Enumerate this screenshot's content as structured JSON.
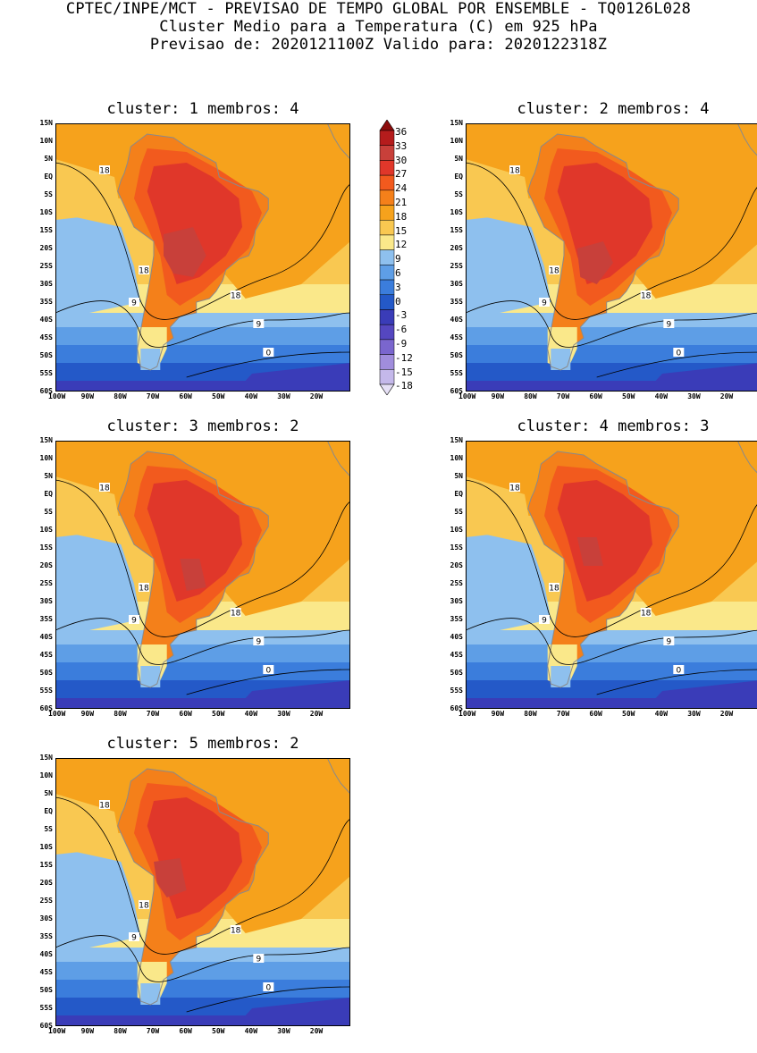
{
  "header": {
    "line1": "CPTEC/INPE/MCT - PREVISAO DE TEMPO GLOBAL POR ENSEMBLE - TQ0126L028",
    "line2": "Cluster Medio para a Temperatura (C) em 925 hPa",
    "line3": "Previsao de: 2020121100Z   Valido para: 2020122318Z"
  },
  "panels": [
    {
      "title": "cluster: 1   membros: 4"
    },
    {
      "title": "cluster: 2   membros: 4"
    },
    {
      "title": "cluster: 3   membros: 2"
    },
    {
      "title": "cluster: 4   membros: 3"
    },
    {
      "title": "cluster: 5   membros: 2"
    }
  ],
  "lat_labels": [
    "15N",
    "10N",
    "5N",
    "EQ",
    "5S",
    "10S",
    "15S",
    "20S",
    "25S",
    "30S",
    "35S",
    "40S",
    "45S",
    "50S",
    "55S",
    "60S"
  ],
  "lon_labels": [
    "100W",
    "90W",
    "80W",
    "70W",
    "60W",
    "50W",
    "40W",
    "30W",
    "20W"
  ],
  "contour_labels": [
    "18",
    "9",
    "0"
  ],
  "colorbar": {
    "levels": [
      "36",
      "33",
      "30",
      "27",
      "24",
      "21",
      "18",
      "15",
      "12",
      "9",
      "6",
      "3",
      "0",
      "-3",
      "-6",
      "-9",
      "-12",
      "-15",
      "-18"
    ],
    "colors": [
      "#8c0d0d",
      "#b51c1c",
      "#c8403a",
      "#e0372a",
      "#f25a1e",
      "#f4801a",
      "#f6a21c",
      "#f9c851",
      "#fae88a",
      "#8ec0ee",
      "#5e9ee6",
      "#3b7ddc",
      "#2459c8",
      "#3a3cb8",
      "#5547c0",
      "#7a66ce",
      "#a08ddc",
      "#c4b8ea",
      "#e6e0f6"
    ]
  }
}
